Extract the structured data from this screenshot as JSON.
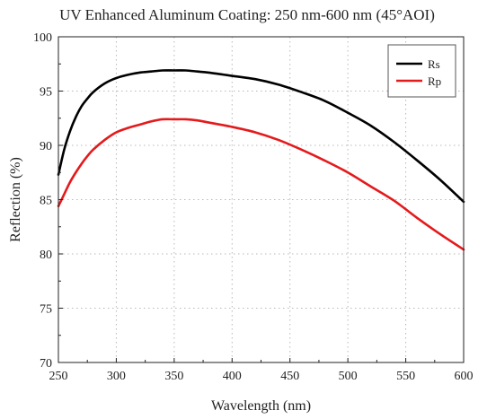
{
  "chart_data": {
    "type": "line",
    "title": "UV Enhanced Aluminum Coating: 250 nm-600 nm (45°AOI)",
    "xlabel": "Wavelength (nm)",
    "ylabel": "Reflection (%)",
    "xlim": [
      250,
      600
    ],
    "ylim": [
      70,
      100
    ],
    "xticks": [
      250,
      300,
      350,
      400,
      450,
      500,
      550,
      600
    ],
    "yticks": [
      70,
      75,
      80,
      85,
      90,
      95,
      100
    ],
    "grid": true,
    "legend_position": "top-right",
    "series": [
      {
        "name": "Rs",
        "color": "#000000",
        "x": [
          250,
          255,
          260,
          265,
          270,
          275,
          280,
          290,
          300,
          310,
          320,
          330,
          340,
          350,
          360,
          370,
          380,
          400,
          420,
          440,
          460,
          480,
          500,
          520,
          540,
          560,
          580,
          600
        ],
        "y": [
          87.3,
          89.6,
          91.3,
          92.6,
          93.6,
          94.3,
          94.9,
          95.7,
          96.2,
          96.5,
          96.7,
          96.8,
          96.9,
          96.9,
          96.9,
          96.8,
          96.7,
          96.4,
          96.1,
          95.6,
          94.9,
          94.1,
          93.0,
          91.8,
          90.3,
          88.6,
          86.8,
          84.8
        ]
      },
      {
        "name": "Rp",
        "color": "#e41a1c",
        "x": [
          250,
          255,
          260,
          265,
          270,
          275,
          280,
          290,
          300,
          310,
          320,
          330,
          340,
          350,
          360,
          370,
          380,
          400,
          420,
          440,
          460,
          480,
          500,
          520,
          540,
          560,
          580,
          600
        ],
        "y": [
          84.4,
          85.5,
          86.6,
          87.5,
          88.3,
          89.0,
          89.6,
          90.5,
          91.2,
          91.6,
          91.9,
          92.2,
          92.4,
          92.4,
          92.4,
          92.3,
          92.1,
          91.7,
          91.2,
          90.5,
          89.6,
          88.6,
          87.5,
          86.2,
          84.9,
          83.3,
          81.8,
          80.4
        ]
      }
    ]
  }
}
